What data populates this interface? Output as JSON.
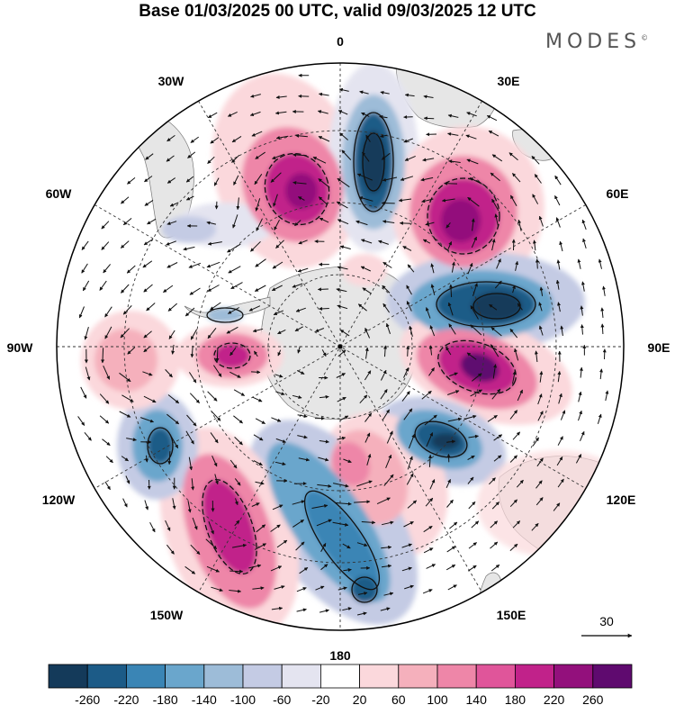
{
  "title": "Base 01/03/2025 00 UTC, valid 09/03/2025 12 UTC",
  "brand": "MODES",
  "brand_mark": "©",
  "longitude_labels": {
    "lon_0": "0",
    "lon_30e": "30E",
    "lon_60e": "60E",
    "lon_90e": "90E",
    "lon_120e": "120E",
    "lon_150e": "150E",
    "lon_180": "180",
    "lon_150w": "150W",
    "lon_120w": "120W",
    "lon_90w": "90W",
    "lon_60w": "60W",
    "lon_30w": "30W"
  },
  "vector_reference": "30",
  "colorbar": {
    "ticks": [
      "-260",
      "-220",
      "-180",
      "-140",
      "-100",
      "-60",
      "-20",
      "20",
      "60",
      "100",
      "140",
      "180",
      "220",
      "260"
    ],
    "colors": [
      "#143a5a",
      "#1c5b87",
      "#3a85b5",
      "#6aa6cc",
      "#9dbcd8",
      "#c4cbe4",
      "#e4e4f0",
      "#ffffff",
      "#fbd8dc",
      "#f5b0bc",
      "#ee86a8",
      "#e0559a",
      "#c1228a",
      "#93107c",
      "#5f0a6f"
    ]
  },
  "colors": {
    "land": "#e6e6e6",
    "grid": "#333333",
    "arrow": "#111111"
  }
}
